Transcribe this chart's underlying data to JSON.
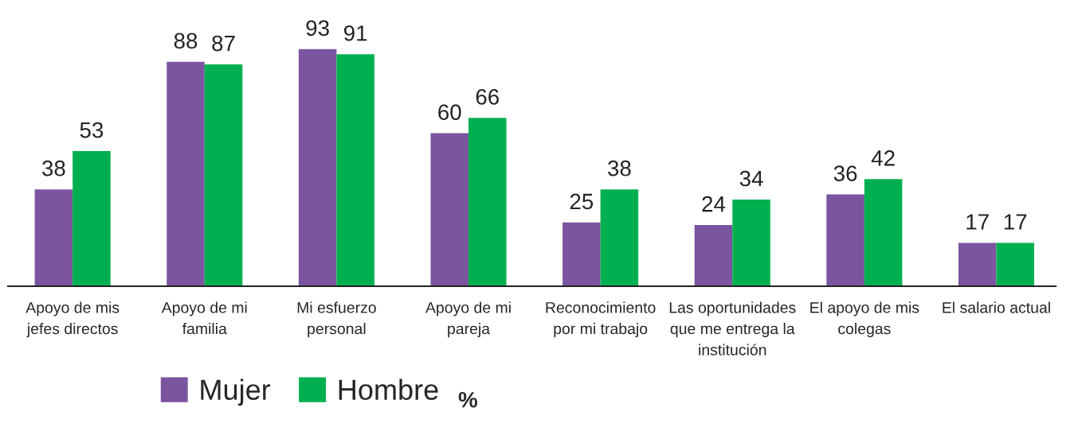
{
  "chart_data": {
    "type": "bar",
    "categories": [
      "Apoyo de mis jefes directos",
      "Apoyo de mi familia",
      "Mi esfuerzo personal",
      "Apoyo de mi pareja",
      "Reconocimiento por mi trabajo",
      "Las oportunidades que me entrega la institución",
      "El apoyo de mis colegas",
      "El salario actual"
    ],
    "series": [
      {
        "name": "Mujer",
        "color": "#7b55a0",
        "values": [
          38,
          88,
          93,
          60,
          25,
          24,
          36,
          17
        ]
      },
      {
        "name": "Hombre",
        "color": "#00b050",
        "values": [
          53,
          87,
          91,
          66,
          38,
          34,
          42,
          17
        ]
      }
    ],
    "data_labels": true,
    "legend": "bottom",
    "grid": false,
    "annotations": [
      "%"
    ]
  }
}
